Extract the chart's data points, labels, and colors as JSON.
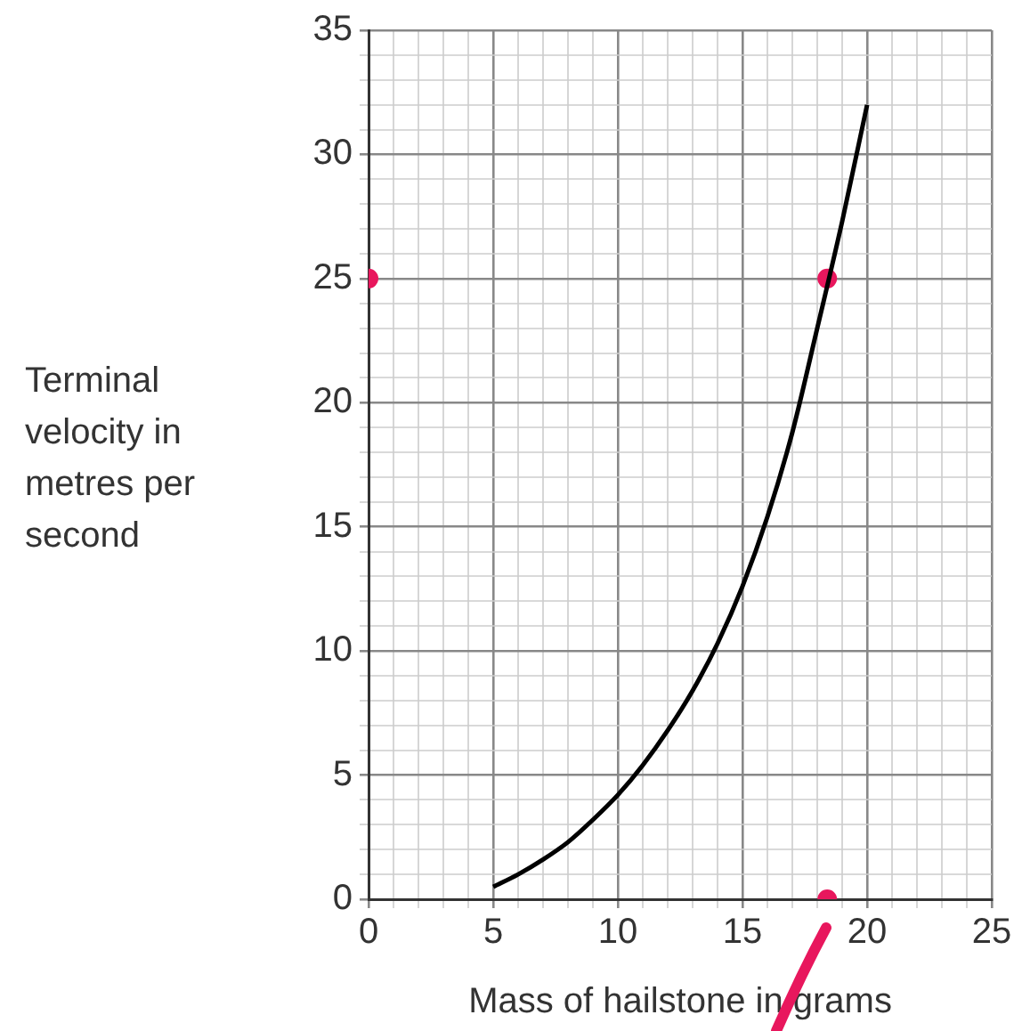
{
  "chart_data": {
    "type": "line",
    "xlabel": "Mass of hailstone in grams",
    "ylabel": "Terminal velocity in metres per second",
    "xlim": [
      0,
      25
    ],
    "ylim": [
      0,
      35
    ],
    "xticks": [
      0,
      {
        "value": 1,
        "label": null
      },
      {
        "value": 2,
        "label": null
      },
      {
        "value": 3,
        "label": null
      },
      {
        "value": 4,
        "label": null
      },
      5,
      {
        "value": 6,
        "label": null
      },
      {
        "value": 7,
        "label": null
      },
      {
        "value": 8,
        "label": null
      },
      {
        "value": 9,
        "label": null
      },
      10,
      {
        "value": 11,
        "label": null
      },
      {
        "value": 12,
        "label": null
      },
      {
        "value": 13,
        "label": null
      },
      {
        "value": 14,
        "label": null
      },
      15,
      {
        "value": 16,
        "label": null
      },
      {
        "value": 17,
        "label": null
      },
      {
        "value": 18,
        "label": null
      },
      {
        "value": 19,
        "label": null
      },
      20,
      {
        "value": 21,
        "label": null
      },
      {
        "value": 22,
        "label": null
      },
      {
        "value": 23,
        "label": null
      },
      {
        "value": 24,
        "label": null
      },
      25
    ],
    "yticks": [
      0,
      {
        "value": 1,
        "label": null
      },
      {
        "value": 2,
        "label": null
      },
      {
        "value": 3,
        "label": null
      },
      {
        "value": 4,
        "label": null
      },
      5,
      {
        "value": 6,
        "label": null
      },
      {
        "value": 7,
        "label": null
      },
      {
        "value": 8,
        "label": null
      },
      {
        "value": 9,
        "label": null
      },
      10,
      {
        "value": 11,
        "label": null
      },
      {
        "value": 12,
        "label": null
      },
      {
        "value": 13,
        "label": null
      },
      {
        "value": 14,
        "label": null
      },
      15,
      {
        "value": 16,
        "label": null
      },
      {
        "value": 17,
        "label": null
      },
      {
        "value": 18,
        "label": null
      },
      {
        "value": 19,
        "label": null
      },
      20,
      {
        "value": 21,
        "label": null
      },
      {
        "value": 22,
        "label": null
      },
      {
        "value": 23,
        "label": null
      },
      {
        "value": 24,
        "label": null
      },
      25,
      {
        "value": 26,
        "label": null
      },
      {
        "value": 27,
        "label": null
      },
      {
        "value": 28,
        "label": null
      },
      {
        "value": 29,
        "label": null
      },
      30,
      {
        "value": 31,
        "label": null
      },
      {
        "value": 32,
        "label": null
      },
      {
        "value": 33,
        "label": null
      },
      {
        "value": 34,
        "label": null
      },
      35
    ],
    "grid": true,
    "legend": false,
    "series": [
      {
        "type": "line",
        "color": "#000000",
        "marker": "none",
        "x": [
          5,
          6,
          7,
          8,
          9,
          10,
          11,
          12,
          13,
          14,
          15,
          16,
          17,
          18,
          19,
          20
        ],
        "values": [
          0.5,
          1.0,
          1.6,
          2.3,
          3.2,
          4.2,
          5.4,
          6.8,
          8.4,
          10.3,
          12.6,
          15.4,
          18.8,
          23,
          27.3,
          32
        ]
      },
      {
        "type": "scatter",
        "color": "#e8175d",
        "marker": "circle",
        "x": [
          0,
          18.4,
          18.4
        ],
        "values": [
          25,
          25,
          0
        ]
      }
    ]
  }
}
